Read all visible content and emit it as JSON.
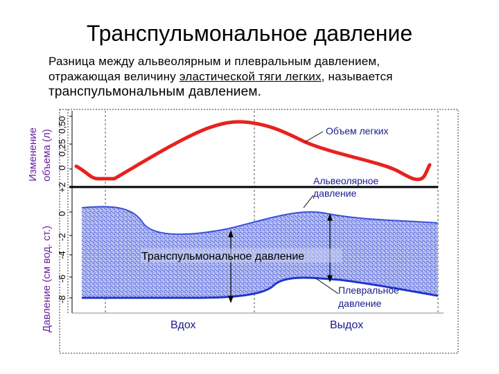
{
  "title": "Транспульмональное давление",
  "subtitle": {
    "line1": "Разница между альвеолярным и плевральным давлением,",
    "line2_before": "отражающая величину ",
    "line2_underlined": "эластической тяги легких",
    "line2_after": ", называется",
    "line3": "транспульмональным давлением."
  },
  "axes": {
    "volume_label_line1": "Изменение",
    "volume_label_line2": "объема (л)",
    "pressure_label": "Давление (см вод. ст.)",
    "volume_ticks": [
      "0,50",
      "0,25",
      "0"
    ],
    "pressure_ticks": [
      "+2",
      "0",
      "-2",
      "-4",
      "-6",
      "-8"
    ]
  },
  "labels": {
    "lung_volume": "Объем легких",
    "alveolar_line1": "Альвеолярное",
    "alveolar_line2": "давление",
    "transpulmonary": "Транспульмональное давление",
    "pleural_line1": "Плевральное",
    "pleural_line2": "давление",
    "inhale": "Вдох",
    "exhale": "Выдох"
  },
  "colors": {
    "volume_curve": "#e8221e",
    "pleural_band": "#3a4fd8",
    "band_fill": "#8a97ea",
    "text_blue": "#1a1a8c",
    "axis_label_purple": "#6b1fa0"
  }
}
